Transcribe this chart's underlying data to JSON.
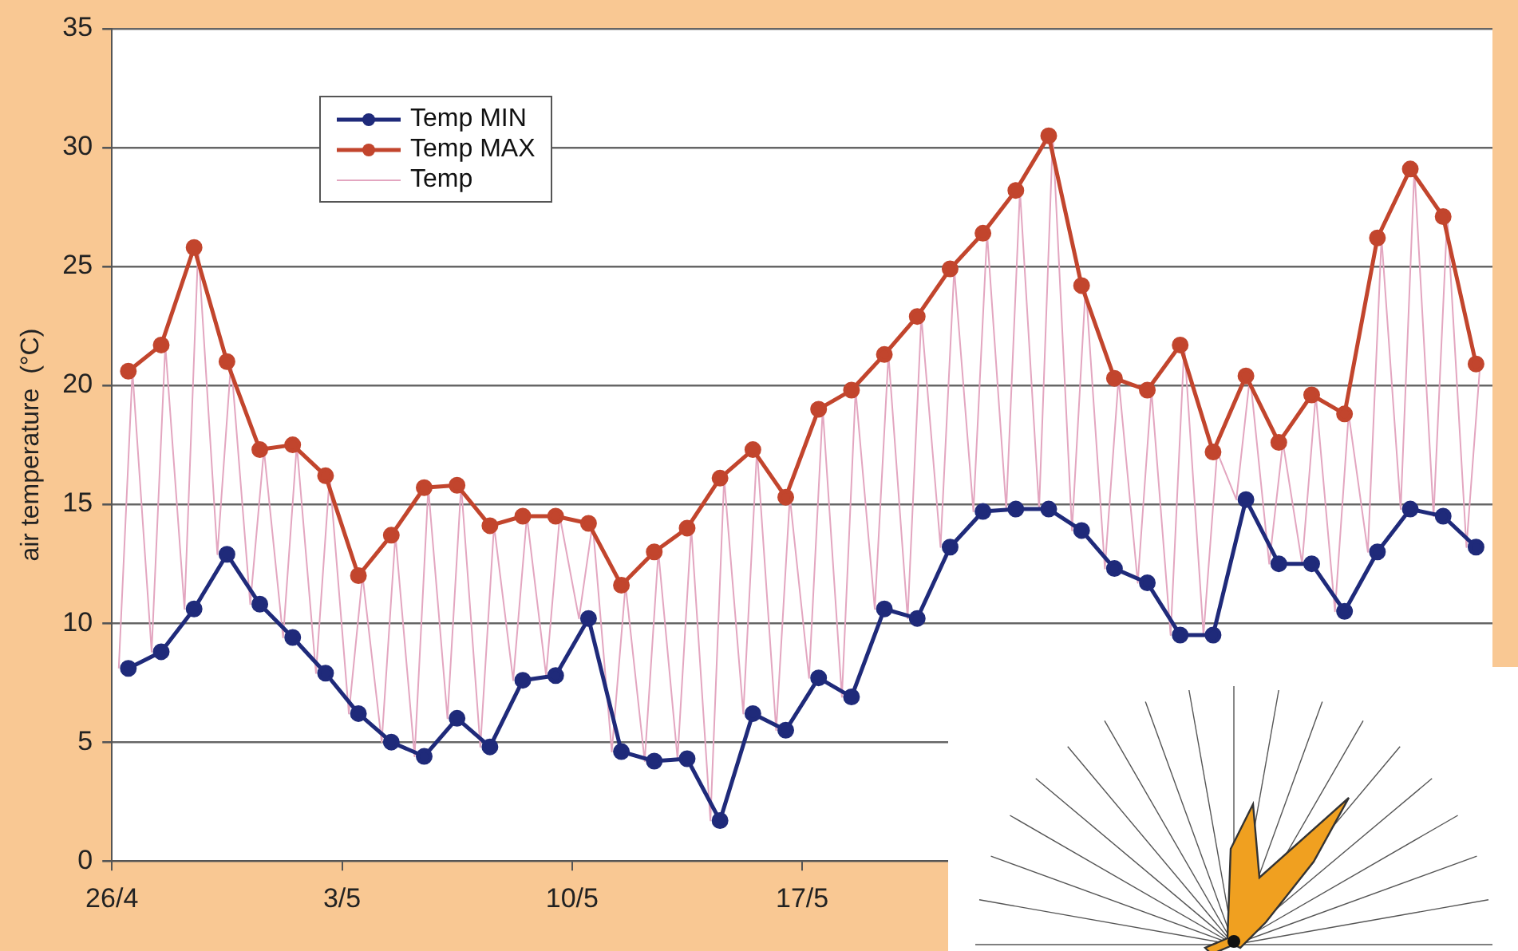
{
  "chart_data": {
    "type": "line",
    "ylabel": "air temperature  (°C)",
    "x": [
      "--04-26T12:00",
      "--04-27T12:00",
      "--04-28T12:00",
      "--04-29T12:00",
      "--04-30T12:00",
      "--05-01T12:00",
      "--05-02T12:00",
      "--05-03T12:00",
      "--05-04T12:00",
      "--05-05T12:00",
      "--05-06T12:00",
      "--05-07T12:00",
      "--05-08T12:00",
      "--05-09T12:00",
      "--05-10T12:00",
      "--05-11T12:00",
      "--05-12T12:00",
      "--05-13T12:00",
      "--05-14T12:00",
      "--05-15T12:00",
      "--05-16T12:00",
      "--05-17T12:00",
      "--05-18T12:00",
      "--05-19T12:00",
      "--05-20T12:00",
      "--05-21T12:00",
      "--05-22T12:00",
      "--05-23T12:00",
      "--05-24T12:00",
      "--05-25T12:00",
      "--05-26T12:00",
      "--05-27T12:00",
      "--05-28T12:00",
      "--05-29T12:00",
      "--05-30T12:00",
      "--05-31T12:00",
      "--06-01T12:00",
      "--06-02T12:00",
      "--06-03T12:00",
      "--06-04T12:00",
      "--06-05T12:00",
      "--06-06T12:00"
    ],
    "series": [
      {
        "name": "Temp MIN",
        "color": "#1f2a7a",
        "values": [
          8.1,
          8.8,
          10.6,
          12.9,
          10.8,
          9.4,
          7.9,
          6.2,
          5.0,
          4.4,
          6.0,
          4.8,
          7.6,
          7.8,
          10.2,
          4.6,
          4.2,
          4.3,
          1.7,
          6.2,
          5.5,
          7.7,
          6.9,
          10.6,
          10.2,
          13.2,
          14.7,
          14.8,
          14.8,
          13.9,
          12.3,
          11.7,
          9.5,
          9.5,
          15.2,
          12.5,
          12.5,
          10.5,
          13.0,
          14.8,
          14.5,
          13.2
        ]
      },
      {
        "name": "Temp MAX",
        "color": "#c2452d",
        "values": [
          20.6,
          21.7,
          25.8,
          21.0,
          17.3,
          17.5,
          16.2,
          12.0,
          13.7,
          15.7,
          15.8,
          14.1,
          14.5,
          14.5,
          14.2,
          11.6,
          13.0,
          14.0,
          16.1,
          17.3,
          15.3,
          19.0,
          19.8,
          21.3,
          22.9,
          24.9,
          26.4,
          28.2,
          30.5,
          24.2,
          20.3,
          19.8,
          21.7,
          17.2,
          20.4,
          17.6,
          19.6,
          18.8,
          26.2,
          29.1,
          27.1,
          20.9
        ]
      },
      {
        "name": "Temp",
        "color": "#e3a6c0",
        "marker": "none",
        "x": [
          "--04-26T05:00",
          "--04-26T15:00",
          "--04-27T05:00",
          "--04-27T15:00",
          "--04-28T05:00",
          "--04-28T15:00",
          "--04-29T05:00",
          "--04-29T15:00",
          "--04-30T05:00",
          "--04-30T15:00",
          "--05-01T05:00",
          "--05-01T15:00",
          "--05-02T05:00",
          "--05-02T15:00",
          "--05-03T05:00",
          "--05-03T15:00",
          "--05-04T05:00",
          "--05-04T15:00",
          "--05-05T05:00",
          "--05-05T15:00",
          "--05-06T05:00",
          "--05-06T15:00",
          "--05-07T05:00",
          "--05-07T15:00",
          "--05-08T05:00",
          "--05-08T15:00",
          "--05-09T05:00",
          "--05-09T15:00",
          "--05-10T05:00",
          "--05-10T15:00",
          "--05-11T05:00",
          "--05-11T15:00",
          "--05-12T05:00",
          "--05-12T15:00",
          "--05-13T05:00",
          "--05-13T15:00",
          "--05-14T05:00",
          "--05-14T15:00",
          "--05-15T05:00",
          "--05-15T15:00",
          "--05-16T05:00",
          "--05-16T15:00",
          "--05-17T05:00",
          "--05-17T15:00",
          "--05-18T05:00",
          "--05-18T15:00",
          "--05-19T05:00",
          "--05-19T15:00",
          "--05-20T05:00",
          "--05-20T15:00",
          "--05-21T05:00",
          "--05-21T15:00",
          "--05-22T05:00",
          "--05-22T15:00",
          "--05-23T05:00",
          "--05-23T15:00",
          "--05-24T05:00",
          "--05-24T15:00",
          "--05-25T05:00",
          "--05-25T15:00",
          "--05-26T05:00",
          "--05-26T15:00",
          "--05-27T05:00",
          "--05-27T15:00",
          "--05-28T05:00",
          "--05-28T15:00",
          "--05-29T05:00",
          "--05-29T15:00",
          "--05-30T05:00",
          "--05-30T15:00",
          "--05-31T05:00",
          "--05-31T15:00",
          "--06-01T05:00",
          "--06-01T15:00",
          "--06-02T05:00",
          "--06-02T15:00",
          "--06-03T05:00",
          "--06-03T15:00",
          "--06-04T05:00",
          "--06-04T15:00",
          "--06-05T05:00",
          "--06-05T15:00",
          "--06-06T05:00",
          "--06-06T15:00"
        ],
        "values": [
          8.1,
          20.6,
          8.8,
          21.7,
          10.6,
          25.8,
          12.9,
          21.0,
          10.8,
          17.3,
          9.4,
          17.5,
          7.9,
          16.2,
          6.2,
          12.0,
          5.0,
          13.7,
          4.4,
          15.7,
          6.0,
          15.8,
          4.8,
          14.1,
          7.6,
          14.5,
          7.8,
          14.5,
          10.2,
          14.2,
          4.6,
          11.6,
          4.2,
          13.0,
          4.3,
          14.0,
          1.7,
          16.1,
          6.2,
          17.3,
          5.5,
          15.3,
          7.7,
          19.0,
          6.9,
          19.8,
          10.6,
          21.3,
          10.2,
          22.9,
          13.2,
          24.9,
          14.7,
          26.4,
          14.8,
          28.2,
          14.8,
          30.5,
          13.9,
          24.2,
          12.3,
          20.3,
          11.7,
          19.8,
          9.5,
          21.7,
          9.5,
          17.2,
          15.2,
          20.4,
          12.5,
          17.6,
          12.5,
          19.6,
          10.5,
          18.8,
          13.0,
          26.2,
          14.8,
          29.1,
          14.5,
          27.1,
          13.2,
          20.9
        ]
      }
    ],
    "xlim": [
      "--04-26",
      "--06-07"
    ],
    "xticks": [
      {
        "value": "--04-26",
        "label": "26/4"
      },
      {
        "value": "--05-03",
        "label": "3/5"
      },
      {
        "value": "--05-10",
        "label": "10/5"
      },
      {
        "value": "--05-17",
        "label": "17/5"
      }
    ],
    "ylim": [
      0,
      35
    ],
    "yticks": [
      0,
      5,
      10,
      15,
      20,
      25,
      30,
      35
    ],
    "grid": "y",
    "legend": "top left",
    "marker": "circle",
    "line_style": "solid"
  }
}
